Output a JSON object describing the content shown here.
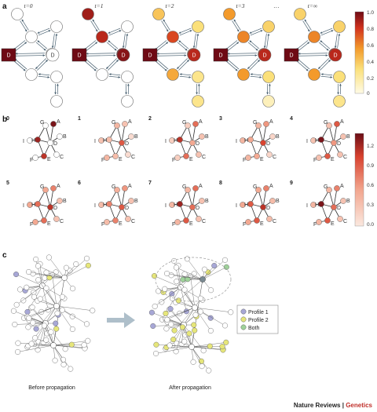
{
  "panels": {
    "a": "a",
    "b": "b",
    "c": "c"
  },
  "panel_a": {
    "time_labels": [
      "t=0",
      "t=1",
      "t=2",
      "t=3",
      "…",
      "t=∞"
    ],
    "node_label": "D",
    "colorbar_ticks": [
      "1.0",
      "0.8",
      "0.6",
      "0.4",
      "0.2",
      "0"
    ],
    "states": [
      [
        null,
        null,
        null,
        null,
        null,
        null,
        null
      ],
      [
        0.9,
        0.85,
        0,
        0.95,
        0,
        0,
        0
      ],
      [
        0.4,
        0.75,
        0.3,
        0.7,
        0.5,
        0.25,
        0.25
      ],
      [
        0.55,
        0.6,
        0.35,
        0.75,
        0.55,
        0.3,
        0.12
      ],
      [
        0.35,
        0.6,
        0.35,
        0.8,
        0.55,
        0.3,
        0.25
      ]
    ]
  },
  "panel_b": {
    "step_labels": [
      "0",
      "1",
      "2",
      "3",
      "4",
      "5",
      "6",
      "7",
      "8",
      "9"
    ],
    "node_names": [
      "G",
      "A",
      "B",
      "I",
      "H",
      "D",
      "F",
      "E",
      "C"
    ],
    "colorbar_ticks": [
      "1.2",
      "0.9",
      "0.6",
      "0.3",
      "0.0"
    ],
    "values": [
      [
        0,
        1.3,
        0,
        0,
        1.2,
        0,
        0,
        1.1,
        0
      ],
      [
        0.4,
        0.3,
        0.1,
        0.3,
        0.35,
        0.9,
        0.4,
        0.35,
        0.1
      ],
      [
        0.2,
        0.8,
        0.3,
        0.2,
        1.1,
        0.5,
        0.2,
        0.8,
        0.3
      ],
      [
        0.4,
        0.6,
        0.15,
        0.4,
        0.5,
        1.0,
        0.4,
        0.5,
        0.15
      ],
      [
        0.3,
        0.9,
        0.3,
        0.3,
        1.3,
        0.6,
        0.3,
        0.9,
        0.3
      ],
      [
        0.5,
        0.7,
        0.3,
        0.5,
        0.8,
        1.1,
        0.5,
        0.8,
        0.3
      ],
      [
        0.45,
        0.6,
        0.3,
        0.35,
        0.7,
        0.9,
        0.35,
        0.7,
        0.3
      ],
      [
        0.4,
        0.8,
        0.3,
        0.4,
        1.2,
        0.8,
        0.4,
        0.9,
        0.3
      ],
      [
        0.5,
        0.7,
        0.35,
        0.5,
        0.9,
        1.1,
        0.5,
        0.9,
        0.35
      ],
      [
        0.4,
        0.7,
        0.3,
        0.4,
        1.3,
        0.8,
        0.4,
        0.9,
        0.3
      ]
    ]
  },
  "panel_c": {
    "before_caption": "Before propagation",
    "after_caption": "After propagation",
    "legend": [
      {
        "label": "Profile 1",
        "color": "#a7a7d6"
      },
      {
        "label": "Profile 2",
        "color": "#e6e67a"
      },
      {
        "label": "Both",
        "color": "#9fd29a"
      }
    ]
  },
  "brand": {
    "journal": "Nature Reviews",
    "separator": " | ",
    "section": "Genetics"
  },
  "colors": {
    "edge": "#5a7a8a",
    "arrow": "#8fa4b2",
    "node_outline": "#666666",
    "grad_a_dark": "#7a0c16",
    "grad_a_light": "#fffbe0",
    "grad_b_dark": "#6e0e15",
    "grad_b_light": "#fbe8df"
  }
}
